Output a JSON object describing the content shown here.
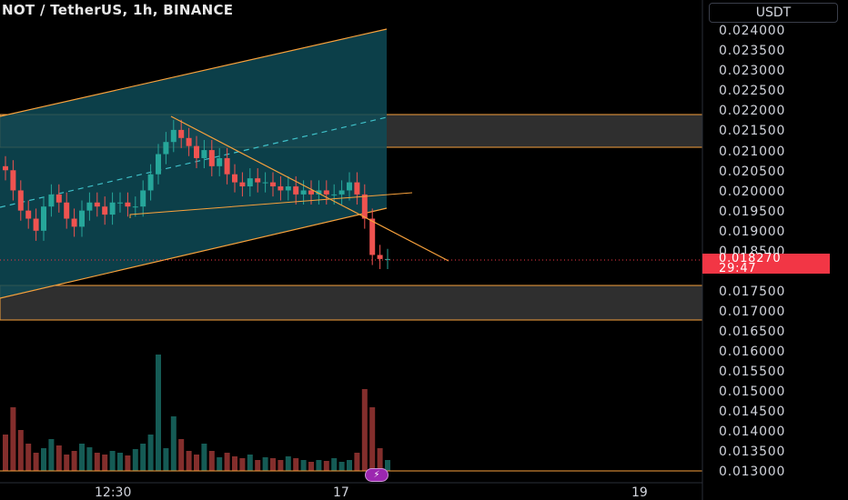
{
  "header": {
    "symbol_title": "NOT / TetherUS, 1h, BINANCE",
    "currency_button": "USDT"
  },
  "price_axis": {
    "labels": [
      "0.024000",
      "0.023500",
      "0.023000",
      "0.022500",
      "0.022000",
      "0.021500",
      "0.021000",
      "0.020500",
      "0.020000",
      "0.019500",
      "0.019000",
      "0.018500",
      "0.017500",
      "0.017000",
      "0.016500",
      "0.016000",
      "0.015500",
      "0.015000",
      "0.014500",
      "0.014000",
      "0.013500",
      "0.013000"
    ],
    "last_price": "0.018270",
    "countdown": "29:47"
  },
  "time_axis": {
    "labels": [
      "12:30",
      "17",
      "19"
    ]
  },
  "colors": {
    "up": "#26a69a",
    "down": "#ef5350",
    "drawing": "#f7a13c",
    "channel_fill": "#0e4a56",
    "zone_fill": "#2f2f2f",
    "last_price_tag": "#f23645"
  },
  "chart_data": {
    "type": "candlestick",
    "symbol": "NOT / TetherUS",
    "interval": "1h",
    "exchange": "BINANCE",
    "ylim": [
      0.0129,
      0.0245
    ],
    "close_series": [
      0.0205,
      0.02,
      0.0195,
      0.0193,
      0.019,
      0.0196,
      0.0199,
      0.0197,
      0.0193,
      0.0191,
      0.0195,
      0.0197,
      0.0196,
      0.0194,
      0.0197,
      0.0197,
      0.0196,
      0.0196,
      0.02,
      0.0204,
      0.0209,
      0.0212,
      0.0215,
      0.0213,
      0.0211,
      0.0208,
      0.021,
      0.0206,
      0.0208,
      0.0204,
      0.0202,
      0.0201,
      0.0203,
      0.0202,
      0.0202,
      0.0201,
      0.02,
      0.0201,
      0.0199,
      0.02,
      0.0199,
      0.02,
      0.0199,
      0.0199,
      0.02,
      0.0202,
      0.0199,
      0.0193,
      0.0184,
      0.0183,
      0.0183
    ],
    "annotations": {
      "rising_channel": "teal channel with orange borders and dashed midline",
      "resistance_zone": [
        0.021,
        0.0219
      ],
      "support_zone": [
        0.0168,
        0.0176
      ],
      "descending_trendline": "from about 0.0219 down to about 0.0183"
    }
  }
}
